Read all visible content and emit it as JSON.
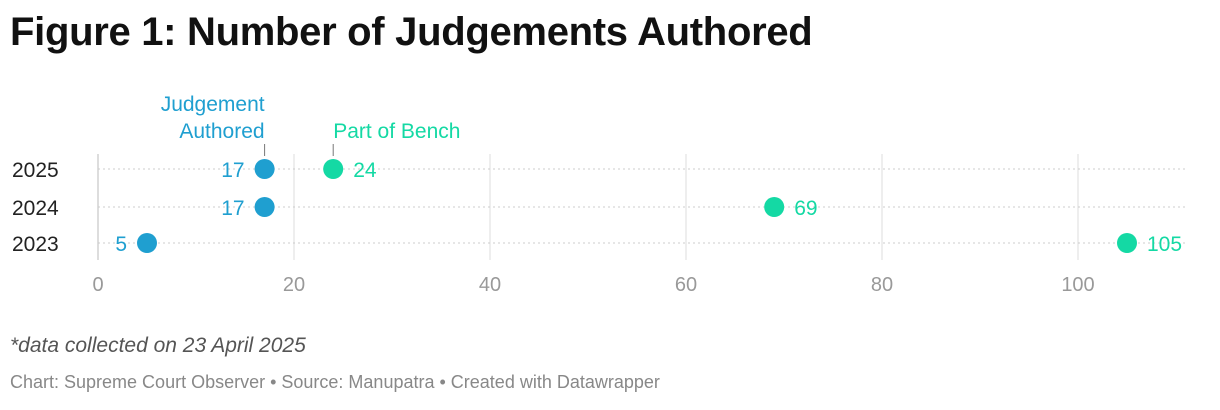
{
  "title": "Figure 1: Number of Judgements Authored",
  "footnote": "*data collected on 23 April 2025",
  "credits": "Chart: Supreme Court Observer • Source: Manupatra • Created with Datawrapper",
  "colors": {
    "authored": "#1f9fd0",
    "bench": "#14d9a4",
    "grid": "#dddddd",
    "axis_text": "#999999",
    "category_text": "#222222"
  },
  "chart_data": {
    "type": "dumbbell",
    "title": "Figure 1: Number of Judgements Authored",
    "xlabel": "",
    "ylabel": "",
    "xlim": [
      0,
      110
    ],
    "xticks": [
      0,
      20,
      40,
      60,
      80,
      100
    ],
    "grid": true,
    "legend": [
      "Judgement Authored",
      "Part of Bench"
    ],
    "legend_placement": "above first row, beside markers",
    "categories": [
      "2025",
      "2024",
      "2023"
    ],
    "series": [
      {
        "name": "Judgement Authored",
        "values": [
          17,
          17,
          5
        ]
      },
      {
        "name": "Part of Bench",
        "values": [
          24,
          69,
          105
        ]
      }
    ]
  }
}
